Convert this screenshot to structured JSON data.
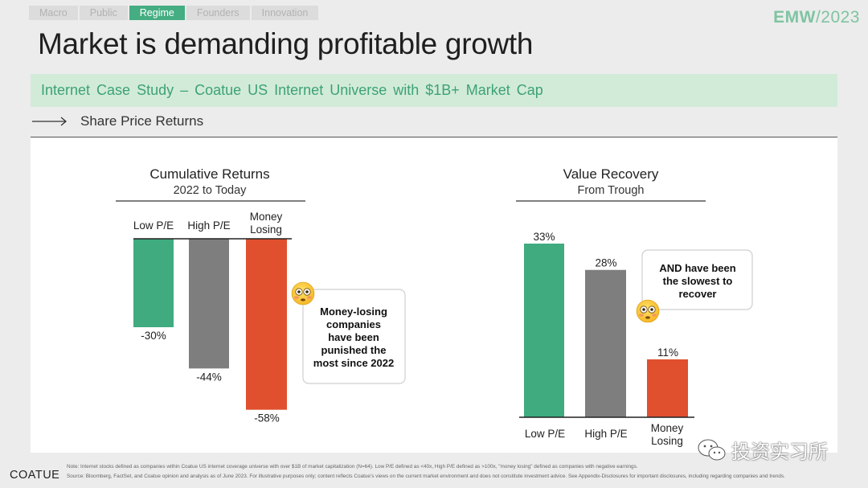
{
  "nav": {
    "tabs": [
      {
        "label": "Macro",
        "active": false
      },
      {
        "label": "Public",
        "active": false
      },
      {
        "label": "Regime",
        "active": true
      },
      {
        "label": "Founders",
        "active": false
      },
      {
        "label": "Innovation",
        "active": false
      }
    ]
  },
  "brand": {
    "bold": "EMW",
    "light": "/2023"
  },
  "title": "Market is demanding profitable growth",
  "banner": "Internet Case Study – Coatue US Internet Universe with $1B+ Market Cap",
  "subhead": "Share Price Returns",
  "colors": {
    "green": "#3fab7f",
    "gray": "#7e7e7e",
    "red": "#e0502e",
    "accent": "#45ad82"
  },
  "chart_data": [
    {
      "type": "bar",
      "title": "Cumulative Returns",
      "subtitle": "2022 to Today",
      "categories": [
        "Low P/E",
        "High P/E",
        "Money Losing"
      ],
      "values": [
        -30,
        -44,
        -58
      ],
      "value_labels": [
        "-30%",
        "-44%",
        "-58%"
      ],
      "ylim": [
        -60,
        0
      ],
      "annotation": "Money-losing companies have been punished the most since 2022"
    },
    {
      "type": "bar",
      "title": "Value Recovery",
      "subtitle": "From Trough",
      "categories": [
        "Low P/E",
        "High P/E",
        "Money Losing"
      ],
      "values": [
        33,
        28,
        11
      ],
      "value_labels": [
        "33%",
        "28%",
        "11%"
      ],
      "ylim": [
        0,
        35
      ],
      "annotation": "AND have been the slowest to recover"
    }
  ],
  "footer": {
    "logo": "COATUE",
    "note": "Note: Internet stocks defined as companies within Coatue US internet coverage universe with over $1B of market capitalization (N=64). Low P/E defined as <40x, High P/E defined as >100x, \"money losing\" defined as companies with negative earnings.",
    "source": "Source: Bloomberg, FactSet, and Coatue opinion and analysis as of June 2023. For illustrative purposes only; content reflects Coatue's views on the current market environment and does not constitute investment advice. See Appendix-Disclosures for important disclosures, including regarding companies and trends."
  },
  "watermark": "投资实习所"
}
